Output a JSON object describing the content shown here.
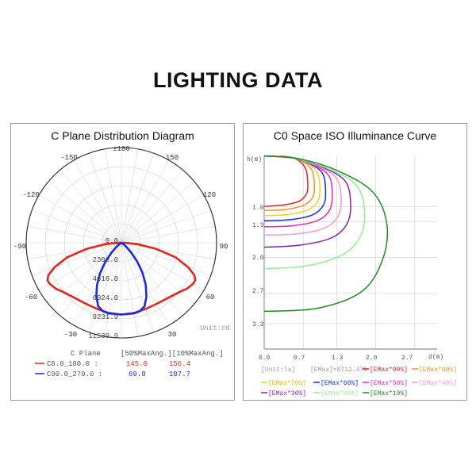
{
  "page": {
    "title": "LIGHTING DATA"
  },
  "colors": {
    "c0_series": "#e8231f",
    "c90_series": "#1a2be0",
    "grid": "#cfcfcf",
    "axis": "#555555",
    "emax90": "#e8231f",
    "emax80": "#f7941d",
    "emax70": "#f2d21b",
    "emax60": "#1a2be0",
    "emax50": "#e52cc1",
    "emax40": "#f49ad8",
    "emax30": "#8a1fa8",
    "emax20": "#8ff08f",
    "emax10": "#1e8c1e"
  },
  "left_panel": {
    "title": "C Plane Distribution Diagram",
    "unit": "Unit:cd",
    "angle_labels": {
      "top": "±180",
      "n150": "-150",
      "p150": "150",
      "n120": "-120",
      "p120": "120",
      "n90": "-90",
      "p90": "90",
      "n60": "-60",
      "p60": "60",
      "n30": "-30",
      "p30": "30",
      "bottom": "0"
    },
    "radial_labels": [
      "0.0",
      "2308.0",
      "4616.0",
      "6924.0",
      "9231.9",
      "11539.9"
    ],
    "legend": {
      "header_plane": "C Plane",
      "header_cols": "[50%MaxAng.][10%MaxAng.]",
      "rows": [
        {
          "label": "C0.0_180.0 :",
          "v50": "145.0",
          "v10": "156.4"
        },
        {
          "label": "C90.0_270.0 :",
          "v50": "69.8",
          "v10": "107.7"
        }
      ]
    }
  },
  "right_panel": {
    "title": "C0 Space ISO Illuminance Curve",
    "y_axis_label": "h(m)",
    "x_axis_label": "d(m)",
    "y_ticks": [
      "1.0",
      "1.3",
      "2.0",
      "2.7",
      "3.3"
    ],
    "x_ticks": [
      "0.0",
      "0.7",
      "1.3",
      "2.0",
      "2.7"
    ],
    "unit": "[Unit:lx]",
    "emax": "[EMax]=8712.479",
    "legend": [
      "[EMax*90%]",
      "[EMax*80%]",
      "[EMax*70%]",
      "[EMax*60%]",
      "[EMax*50%]",
      "[EMax*40%]",
      "[EMax*30%]",
      "[EMax*20%]",
      "[EMax*10%]"
    ]
  },
  "chart_data": [
    {
      "type": "polar",
      "title": "C Plane Distribution Diagram",
      "unit": "cd",
      "radial_range": [
        0,
        11539.9
      ],
      "angle_ticks": [
        -150,
        -120,
        -90,
        -60,
        -30,
        0,
        30,
        60,
        90,
        120,
        150,
        180
      ],
      "series": [
        {
          "name": "C0.0_180.0",
          "points": [
            {
              "angle": 0,
              "value": 8700
            },
            {
              "angle": 10,
              "value": 8650
            },
            {
              "angle": 20,
              "value": 8550
            },
            {
              "angle": 30,
              "value": 8550
            },
            {
              "angle": 40,
              "value": 8750
            },
            {
              "angle": 50,
              "value": 9250
            },
            {
              "angle": 55,
              "value": 9700
            },
            {
              "angle": 60,
              "value": 10000
            },
            {
              "angle": 63,
              "value": 10050
            },
            {
              "angle": 66,
              "value": 9700
            },
            {
              "angle": 70,
              "value": 8600
            },
            {
              "angle": 75,
              "value": 6800
            },
            {
              "angle": 80,
              "value": 4300
            },
            {
              "angle": 85,
              "value": 2000
            },
            {
              "angle": 88,
              "value": 700
            },
            {
              "angle": 90,
              "value": 100
            },
            {
              "angle": -90,
              "value": 100
            },
            {
              "angle": -88,
              "value": 700
            },
            {
              "angle": -85,
              "value": 2000
            },
            {
              "angle": -80,
              "value": 4300
            },
            {
              "angle": -75,
              "value": 6800
            },
            {
              "angle": -70,
              "value": 8600
            },
            {
              "angle": -66,
              "value": 9700
            },
            {
              "angle": -63,
              "value": 10050
            },
            {
              "angle": -60,
              "value": 10000
            },
            {
              "angle": -55,
              "value": 9700
            },
            {
              "angle": -50,
              "value": 9250
            },
            {
              "angle": -40,
              "value": 8750
            },
            {
              "angle": -30,
              "value": 8550
            },
            {
              "angle": -20,
              "value": 8550
            },
            {
              "angle": -10,
              "value": 8650
            }
          ]
        },
        {
          "name": "C90.0_270.0",
          "points": [
            {
              "angle": 0,
              "value": 8700
            },
            {
              "angle": 10,
              "value": 8700
            },
            {
              "angle": 15,
              "value": 8600
            },
            {
              "angle": 20,
              "value": 8200
            },
            {
              "angle": 25,
              "value": 7200
            },
            {
              "angle": 30,
              "value": 5900
            },
            {
              "angle": 35,
              "value": 4500
            },
            {
              "angle": 40,
              "value": 3000
            },
            {
              "angle": 45,
              "value": 1700
            },
            {
              "angle": 52,
              "value": 700
            },
            {
              "angle": 60,
              "value": 150
            },
            {
              "angle": -60,
              "value": 150
            },
            {
              "angle": -52,
              "value": 700
            },
            {
              "angle": -45,
              "value": 1700
            },
            {
              "angle": -40,
              "value": 3000
            },
            {
              "angle": -35,
              "value": 4500
            },
            {
              "angle": -30,
              "value": 5900
            },
            {
              "angle": -25,
              "value": 7200
            },
            {
              "angle": -20,
              "value": 8200
            },
            {
              "angle": -15,
              "value": 8600
            },
            {
              "angle": -10,
              "value": 8700
            }
          ]
        }
      ]
    },
    {
      "type": "line",
      "title": "C0 Space ISO Illuminance Curve",
      "xlabel": "d(m)",
      "ylabel": "h(m)",
      "xlim": [
        0,
        3.1
      ],
      "ylim": [
        0,
        3.8
      ],
      "y_inverted": true,
      "unit": "lx",
      "emax": 8712.479,
      "series": [
        {
          "name": "[EMax*90%]",
          "points": [
            [
              0,
              0.01
            ],
            [
              0.4,
              0.02
            ],
            [
              0.62,
              0.1
            ],
            [
              0.75,
              0.28
            ],
            [
              0.78,
              0.55
            ],
            [
              0.76,
              0.75
            ],
            [
              0.62,
              0.9
            ],
            [
              0.35,
              0.97
            ],
            [
              0,
              1.0
            ]
          ]
        },
        {
          "name": "[EMax*80%]",
          "points": [
            [
              0,
              0.01
            ],
            [
              0.42,
              0.03
            ],
            [
              0.7,
              0.12
            ],
            [
              0.86,
              0.3
            ],
            [
              0.9,
              0.6
            ],
            [
              0.87,
              0.82
            ],
            [
              0.7,
              0.98
            ],
            [
              0.38,
              1.06
            ],
            [
              0,
              1.08
            ]
          ]
        },
        {
          "name": "[EMax*70%]",
          "points": [
            [
              0,
              0.01
            ],
            [
              0.45,
              0.03
            ],
            [
              0.76,
              0.14
            ],
            [
              0.95,
              0.33
            ],
            [
              1.0,
              0.65
            ],
            [
              0.96,
              0.9
            ],
            [
              0.78,
              1.07
            ],
            [
              0.42,
              1.16
            ],
            [
              0,
              1.18
            ]
          ]
        },
        {
          "name": "[EMax*60%]",
          "points": [
            [
              0,
              0.01
            ],
            [
              0.48,
              0.04
            ],
            [
              0.82,
              0.16
            ],
            [
              1.05,
              0.36
            ],
            [
              1.1,
              0.7
            ],
            [
              1.06,
              0.98
            ],
            [
              0.86,
              1.17
            ],
            [
              0.46,
              1.26
            ],
            [
              0,
              1.28
            ]
          ]
        },
        {
          "name": "[EMax*50%]",
          "points": [
            [
              0,
              0.01
            ],
            [
              0.5,
              0.04
            ],
            [
              0.88,
              0.18
            ],
            [
              1.16,
              0.4
            ],
            [
              1.22,
              0.76
            ],
            [
              1.17,
              1.08
            ],
            [
              0.95,
              1.28
            ],
            [
              0.5,
              1.38
            ],
            [
              0,
              1.4
            ]
          ]
        },
        {
          "name": "[EMax*40%]",
          "points": [
            [
              0,
              0.01
            ],
            [
              0.52,
              0.05
            ],
            [
              0.95,
              0.2
            ],
            [
              1.3,
              0.45
            ],
            [
              1.38,
              0.84
            ],
            [
              1.32,
              1.2
            ],
            [
              1.07,
              1.43
            ],
            [
              0.57,
              1.54
            ],
            [
              0,
              1.56
            ]
          ]
        },
        {
          "name": "[EMax*30%]",
          "points": [
            [
              0,
              0.01
            ],
            [
              0.55,
              0.05
            ],
            [
              1.03,
              0.22
            ],
            [
              1.45,
              0.5
            ],
            [
              1.55,
              0.95
            ],
            [
              1.48,
              1.35
            ],
            [
              1.2,
              1.62
            ],
            [
              0.64,
              1.76
            ],
            [
              0,
              1.8
            ]
          ]
        },
        {
          "name": "[EMax*20%]",
          "points": [
            [
              0,
              0.01
            ],
            [
              0.58,
              0.06
            ],
            [
              1.13,
              0.25
            ],
            [
              1.65,
              0.58
            ],
            [
              1.8,
              1.1
            ],
            [
              1.72,
              1.6
            ],
            [
              1.4,
              1.95
            ],
            [
              0.75,
              2.17
            ],
            [
              0,
              2.22
            ]
          ]
        },
        {
          "name": "[EMax*10%]",
          "points": [
            [
              0,
              0.01
            ],
            [
              0.65,
              0.07
            ],
            [
              1.32,
              0.3
            ],
            [
              1.95,
              0.72
            ],
            [
              2.2,
              1.35
            ],
            [
              2.12,
              2.05
            ],
            [
              1.75,
              2.67
            ],
            [
              0.95,
              3.0
            ],
            [
              0,
              3.06
            ]
          ]
        }
      ]
    }
  ]
}
